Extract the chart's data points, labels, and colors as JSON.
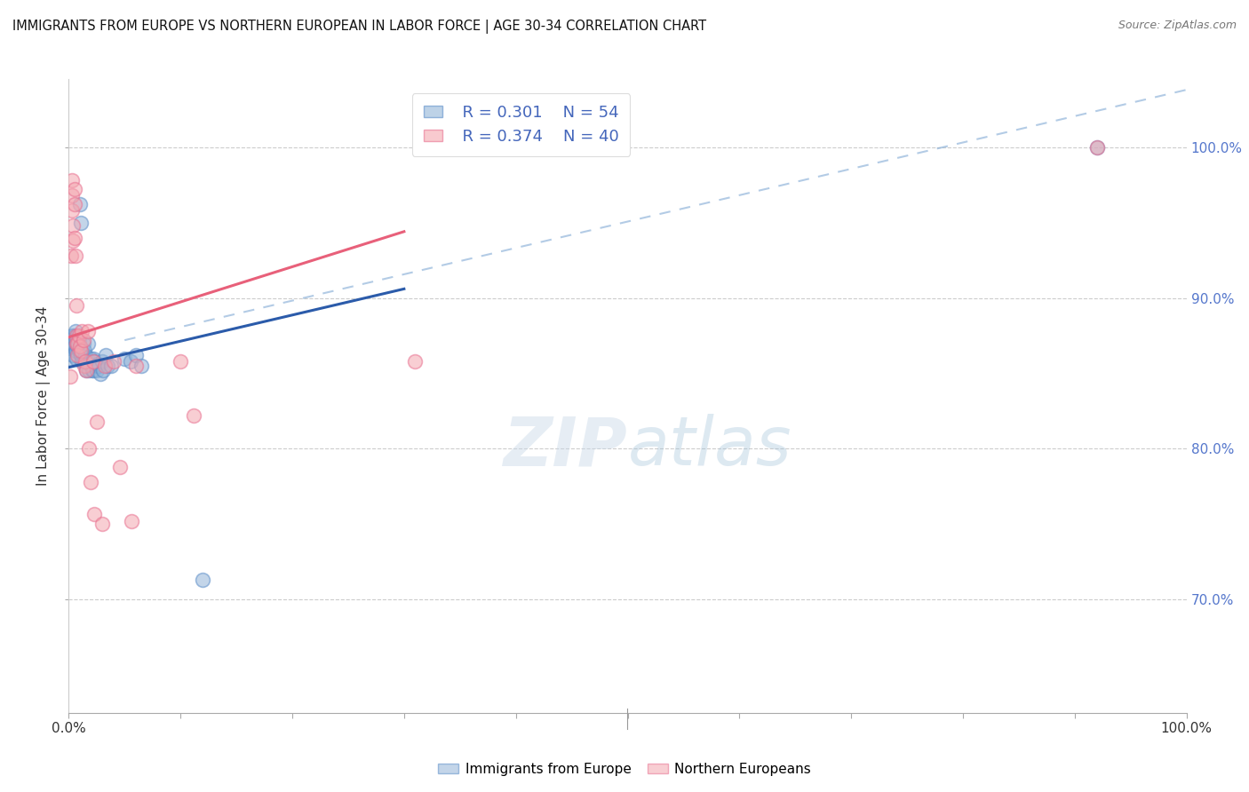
{
  "title": "IMMIGRANTS FROM EUROPE VS NORTHERN EUROPEAN IN LABOR FORCE | AGE 30-34 CORRELATION CHART",
  "source": "Source: ZipAtlas.com",
  "ylabel": "In Labor Force | Age 30-34",
  "watermark_zip": "ZIP",
  "watermark_atlas": "atlas",
  "legend_blue_r": "R = 0.301",
  "legend_blue_n": "N = 54",
  "legend_pink_r": "R = 0.374",
  "legend_pink_n": "N = 40",
  "blue_color": "#92B4D8",
  "pink_color": "#F4A7B0",
  "blue_edge_color": "#5B8DC8",
  "pink_edge_color": "#E87090",
  "blue_line_color": "#2B5BAA",
  "pink_line_color": "#E8607A",
  "dashed_line_color": "#8AB0D8",
  "blue_scatter": [
    [
      0.001,
      0.86
    ],
    [
      0.002,
      0.872
    ],
    [
      0.003,
      0.866
    ],
    [
      0.003,
      0.875
    ],
    [
      0.004,
      0.87
    ],
    [
      0.004,
      0.862
    ],
    [
      0.005,
      0.875
    ],
    [
      0.005,
      0.868
    ],
    [
      0.006,
      0.878
    ],
    [
      0.006,
      0.872
    ],
    [
      0.006,
      0.865
    ],
    [
      0.007,
      0.87
    ],
    [
      0.007,
      0.865
    ],
    [
      0.007,
      0.86
    ],
    [
      0.008,
      0.875
    ],
    [
      0.008,
      0.868
    ],
    [
      0.009,
      0.872
    ],
    [
      0.009,
      0.865
    ],
    [
      0.01,
      0.962
    ],
    [
      0.01,
      0.865
    ],
    [
      0.011,
      0.95
    ],
    [
      0.011,
      0.862
    ],
    [
      0.012,
      0.858
    ],
    [
      0.013,
      0.87
    ],
    [
      0.013,
      0.858
    ],
    [
      0.014,
      0.865
    ],
    [
      0.015,
      0.862
    ],
    [
      0.016,
      0.855
    ],
    [
      0.016,
      0.852
    ],
    [
      0.017,
      0.87
    ],
    [
      0.018,
      0.858
    ],
    [
      0.018,
      0.852
    ],
    [
      0.019,
      0.856
    ],
    [
      0.02,
      0.86
    ],
    [
      0.021,
      0.852
    ],
    [
      0.022,
      0.86
    ],
    [
      0.022,
      0.852
    ],
    [
      0.023,
      0.858
    ],
    [
      0.024,
      0.855
    ],
    [
      0.025,
      0.852
    ],
    [
      0.026,
      0.856
    ],
    [
      0.027,
      0.855
    ],
    [
      0.028,
      0.85
    ],
    [
      0.03,
      0.858
    ],
    [
      0.031,
      0.852
    ],
    [
      0.033,
      0.862
    ],
    [
      0.035,
      0.855
    ],
    [
      0.038,
      0.855
    ],
    [
      0.05,
      0.86
    ],
    [
      0.055,
      0.858
    ],
    [
      0.06,
      0.862
    ],
    [
      0.065,
      0.855
    ],
    [
      0.12,
      0.713
    ],
    [
      0.92,
      1.0
    ]
  ],
  "pink_scatter": [
    [
      0.001,
      0.848
    ],
    [
      0.002,
      0.928
    ],
    [
      0.003,
      0.978
    ],
    [
      0.003,
      0.968
    ],
    [
      0.003,
      0.958
    ],
    [
      0.004,
      0.948
    ],
    [
      0.004,
      0.938
    ],
    [
      0.005,
      0.972
    ],
    [
      0.005,
      0.962
    ],
    [
      0.005,
      0.94
    ],
    [
      0.006,
      0.928
    ],
    [
      0.007,
      0.895
    ],
    [
      0.007,
      0.875
    ],
    [
      0.007,
      0.87
    ],
    [
      0.008,
      0.87
    ],
    [
      0.008,
      0.862
    ],
    [
      0.009,
      0.875
    ],
    [
      0.01,
      0.868
    ],
    [
      0.011,
      0.865
    ],
    [
      0.012,
      0.878
    ],
    [
      0.013,
      0.872
    ],
    [
      0.014,
      0.855
    ],
    [
      0.015,
      0.858
    ],
    [
      0.016,
      0.852
    ],
    [
      0.017,
      0.878
    ],
    [
      0.018,
      0.8
    ],
    [
      0.02,
      0.778
    ],
    [
      0.022,
      0.858
    ],
    [
      0.023,
      0.757
    ],
    [
      0.025,
      0.818
    ],
    [
      0.03,
      0.75
    ],
    [
      0.032,
      0.855
    ],
    [
      0.04,
      0.858
    ],
    [
      0.046,
      0.788
    ],
    [
      0.056,
      0.752
    ],
    [
      0.06,
      0.855
    ],
    [
      0.1,
      0.858
    ],
    [
      0.112,
      0.822
    ],
    [
      0.31,
      0.858
    ],
    [
      0.92,
      1.0
    ]
  ],
  "blue_line_pts": [
    [
      0.0,
      0.854
    ],
    [
      0.3,
      0.906
    ]
  ],
  "pink_line_pts": [
    [
      0.0,
      0.874
    ],
    [
      0.3,
      0.944
    ]
  ],
  "dashed_line_pts": [
    [
      0.05,
      0.872
    ],
    [
      1.0,
      1.038
    ]
  ],
  "xlim": [
    0.0,
    1.0
  ],
  "ylim": [
    0.625,
    1.045
  ],
  "yticks": [
    0.7,
    0.8,
    0.9,
    1.0
  ],
  "ytick_labels": [
    "70.0%",
    "80.0%",
    "90.0%",
    "100.0%"
  ],
  "xtick_positions": [
    0.0,
    0.1,
    0.2,
    0.3,
    0.4,
    0.5,
    0.6,
    0.7,
    0.8,
    0.9,
    1.0
  ],
  "background_color": "#FFFFFF",
  "grid_color": "#CCCCCC"
}
